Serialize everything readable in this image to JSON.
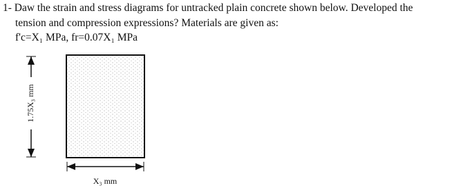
{
  "question": {
    "lines": [
      "1- Daw the strain and stress diagrams for untracked plain concrete shown below. Developed the",
      "tension and compression expressions? Materials are given as:",
      "f'c=X₁ MPa, fr=0.07X₁ MPa"
    ]
  },
  "figure": {
    "height_label": "1.75X₃ mm",
    "width_label": "X₃ mm"
  }
}
